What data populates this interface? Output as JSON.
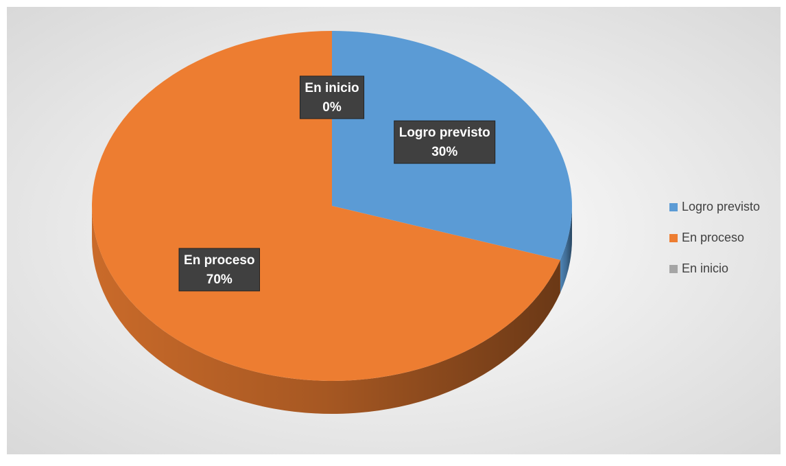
{
  "chart_data": {
    "type": "pie",
    "categories": [
      "Logro previsto",
      "En proceso",
      "En inicio"
    ],
    "values": [
      30,
      70,
      0
    ],
    "value_labels": [
      "30%",
      "70%",
      "0%"
    ],
    "colors": [
      "#5b9bd5",
      "#ed7d31",
      "#a5a5a5"
    ],
    "legend": "right"
  }
}
